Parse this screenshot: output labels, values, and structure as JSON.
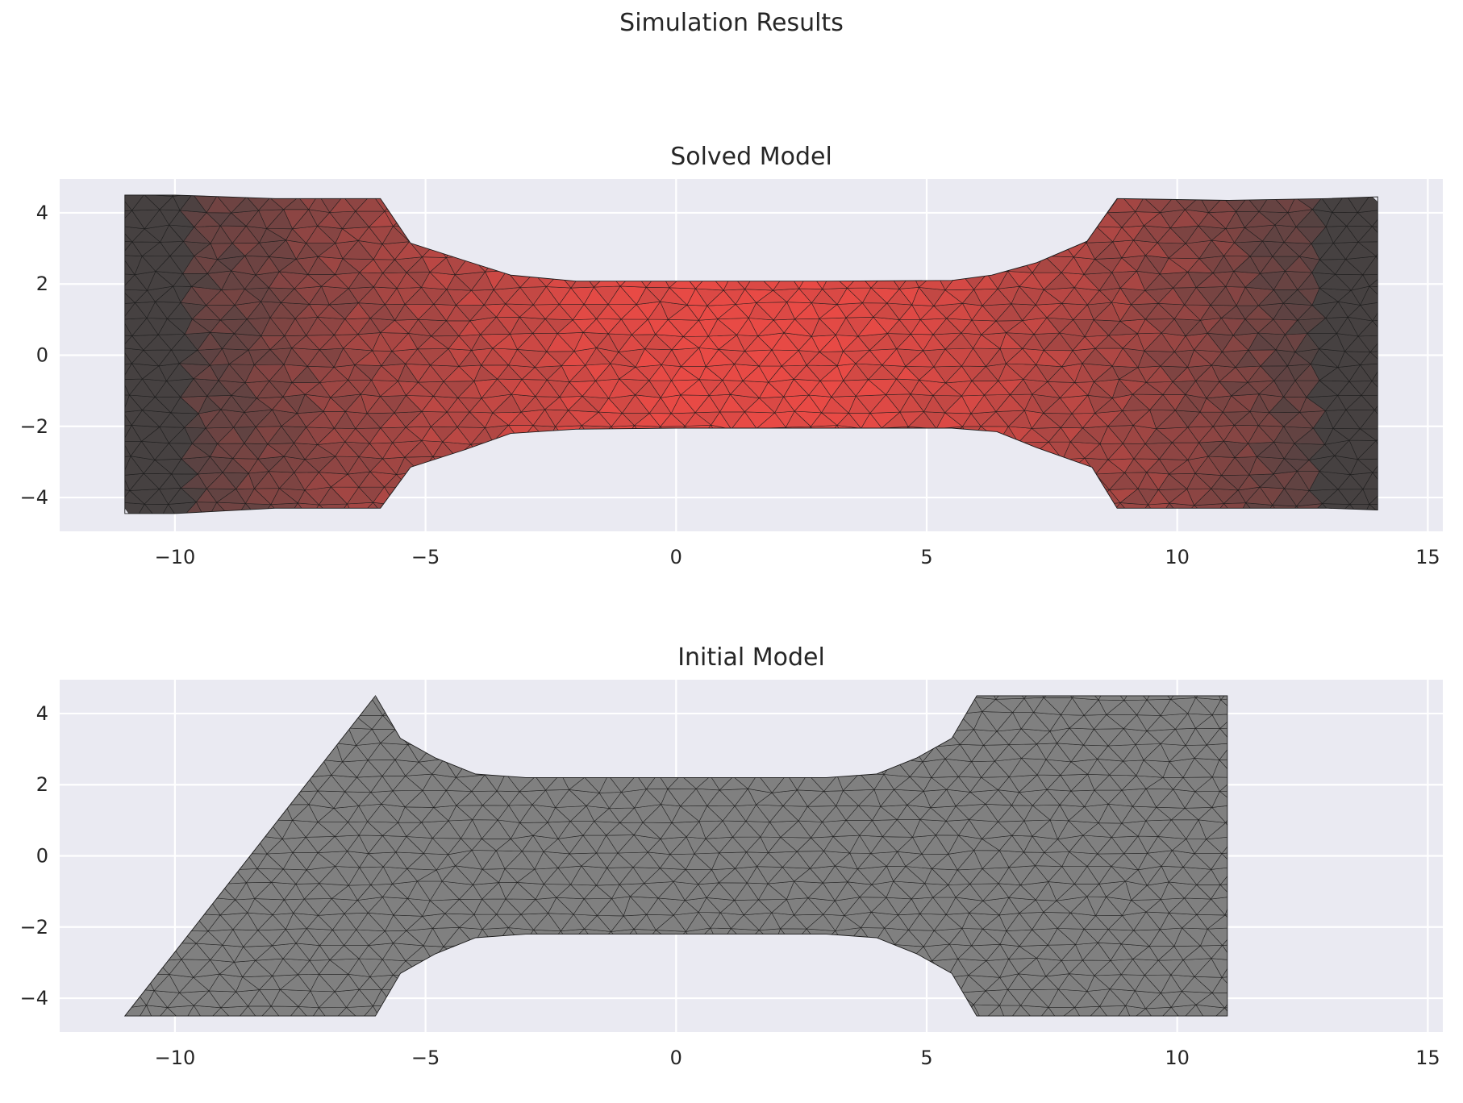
{
  "figure": {
    "title": "Simulation Results"
  },
  "colors": {
    "axes_background": "#eaeaf2",
    "grid": "#ffffff",
    "mesh_edge": "#1a1a1a",
    "initial_fill": "#808080",
    "solved_low_strain": "#464141",
    "solved_high_strain": "#e84a45"
  },
  "chart_data": [
    {
      "type": "mesh",
      "title": "Solved Model",
      "xlim": [
        -12.3,
        15.3
      ],
      "ylim": [
        -4.95,
        4.95
      ],
      "xticks": [
        -10,
        -5,
        0,
        5,
        10,
        15
      ],
      "xtick_labels": [
        "−10",
        "−5",
        "0",
        "5",
        "10",
        "15"
      ],
      "yticks": [
        -4,
        -2,
        0,
        2,
        4
      ],
      "ytick_labels": [
        "−4",
        "−2",
        "0",
        "2",
        "4"
      ],
      "grid": true,
      "outline": [
        [
          -11,
          -4.45
        ],
        [
          -10,
          -4.45
        ],
        [
          -8,
          -4.3
        ],
        [
          -5.9,
          -4.3
        ],
        [
          -5.3,
          -3.15
        ],
        [
          -4.2,
          -2.65
        ],
        [
          -3.3,
          -2.2
        ],
        [
          -2,
          -2.08
        ],
        [
          0,
          -2.05
        ],
        [
          3,
          -2.05
        ],
        [
          5.5,
          -2.05
        ],
        [
          6.4,
          -2.15
        ],
        [
          7.2,
          -2.6
        ],
        [
          8.3,
          -3.15
        ],
        [
          8.8,
          -4.3
        ],
        [
          11,
          -4.3
        ],
        [
          13,
          -4.3
        ],
        [
          14,
          -4.35
        ],
        [
          14,
          4.45
        ],
        [
          13,
          4.4
        ],
        [
          11,
          4.35
        ],
        [
          8.8,
          4.4
        ],
        [
          8.2,
          3.2
        ],
        [
          7.2,
          2.6
        ],
        [
          6.3,
          2.25
        ],
        [
          5.5,
          2.1
        ],
        [
          3,
          2.08
        ],
        [
          0,
          2.08
        ],
        [
          -2,
          2.08
        ],
        [
          -3.3,
          2.25
        ],
        [
          -4.2,
          2.65
        ],
        [
          -5.3,
          3.15
        ],
        [
          -5.9,
          4.4
        ],
        [
          -8,
          4.4
        ],
        [
          -10,
          4.5
        ],
        [
          -11,
          4.5
        ]
      ],
      "colormap": {
        "low_strain_color": "#464141",
        "high_strain_color": "#e84a45",
        "pattern": "dark at both clamped ends, brightest red in the narrow gauge section"
      },
      "mesh": "triangular, approx. 0.5 unit elements, dark edge lines"
    },
    {
      "type": "mesh",
      "title": "Initial Model",
      "xlim": [
        -12.3,
        15.3
      ],
      "ylim": [
        -4.95,
        4.95
      ],
      "xticks": [
        -10,
        -5,
        0,
        5,
        10,
        15
      ],
      "xtick_labels": [
        "−10",
        "−5",
        "0",
        "5",
        "10",
        "15"
      ],
      "yticks": [
        -4,
        -2,
        0,
        2,
        4
      ],
      "ytick_labels": [
        "−4",
        "−2",
        "0",
        "2",
        "4"
      ],
      "grid": true,
      "outline": [
        [
          -11,
          -4.5
        ],
        [
          -6,
          -4.5
        ],
        [
          -5.5,
          -3.3
        ],
        [
          -4.8,
          -2.75
        ],
        [
          -4,
          -2.3
        ],
        [
          -3,
          -2.2
        ],
        [
          0,
          -2.2
        ],
        [
          3,
          -2.2
        ],
        [
          4,
          -2.3
        ],
        [
          4.8,
          -2.75
        ],
        [
          5.5,
          -3.3
        ],
        [
          6,
          -4.5
        ],
        [
          11,
          -4.5
        ],
        [
          11,
          4.5
        ],
        [
          6,
          4.5
        ],
        [
          5.5,
          3.3
        ],
        [
          4.8,
          2.75
        ],
        [
          4,
          2.3
        ],
        [
          3,
          2.2
        ],
        [
          0,
          2.2
        ],
        [
          -3,
          2.2
        ],
        [
          -4,
          2.3
        ],
        [
          -4.8,
          2.75
        ],
        [
          -5.5,
          3.3
        ],
        [
          -6,
          4.5
        ]
      ],
      "fill": "#808080",
      "mesh": "triangular, approx. 0.5 unit elements, dark edge lines"
    }
  ]
}
